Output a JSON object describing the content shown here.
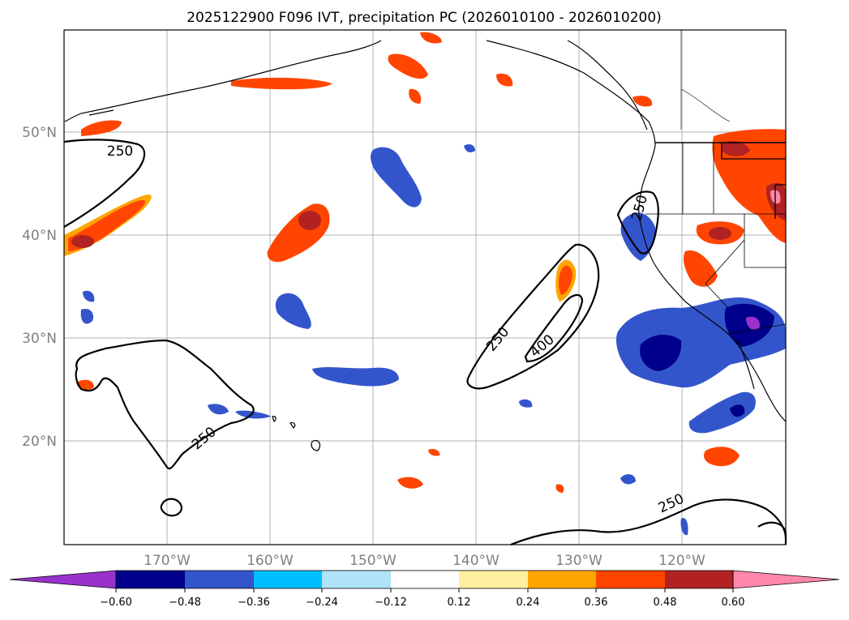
{
  "title": "2025122900 F096 IVT, precipitation PC (2026010100 - 2026010200)",
  "map": {
    "lon_range": [
      -180,
      -110
    ],
    "lat_range": [
      10,
      60
    ],
    "lat_ticks": [
      {
        "value": 50,
        "label": "50°N"
      },
      {
        "value": 40,
        "label": "40°N"
      },
      {
        "value": 30,
        "label": "30°N"
      },
      {
        "value": 20,
        "label": "20°N"
      }
    ],
    "lon_ticks": [
      {
        "value": -170,
        "label": "170°W"
      },
      {
        "value": -160,
        "label": "160°W"
      },
      {
        "value": -150,
        "label": "150°W"
      },
      {
        "value": -140,
        "label": "140°W"
      },
      {
        "value": -130,
        "label": "130°W"
      },
      {
        "value": -120,
        "label": "120°W"
      }
    ],
    "ivt_contour_labels": [
      "250",
      "250",
      "250",
      "400",
      "250",
      "250"
    ]
  },
  "colorbar": {
    "ticks": [
      "−0.60",
      "−0.48",
      "−0.36",
      "−0.24",
      "−0.12",
      "0.12",
      "0.24",
      "0.36",
      "0.48",
      "0.60"
    ],
    "colors": [
      "#9932cc",
      "#00008b",
      "#3355cc",
      "#00bfff",
      "#aee3f8",
      "#ffffff",
      "#fff0a0",
      "#ffa500",
      "#ff4500",
      "#b22222",
      "#ff88aa"
    ]
  }
}
